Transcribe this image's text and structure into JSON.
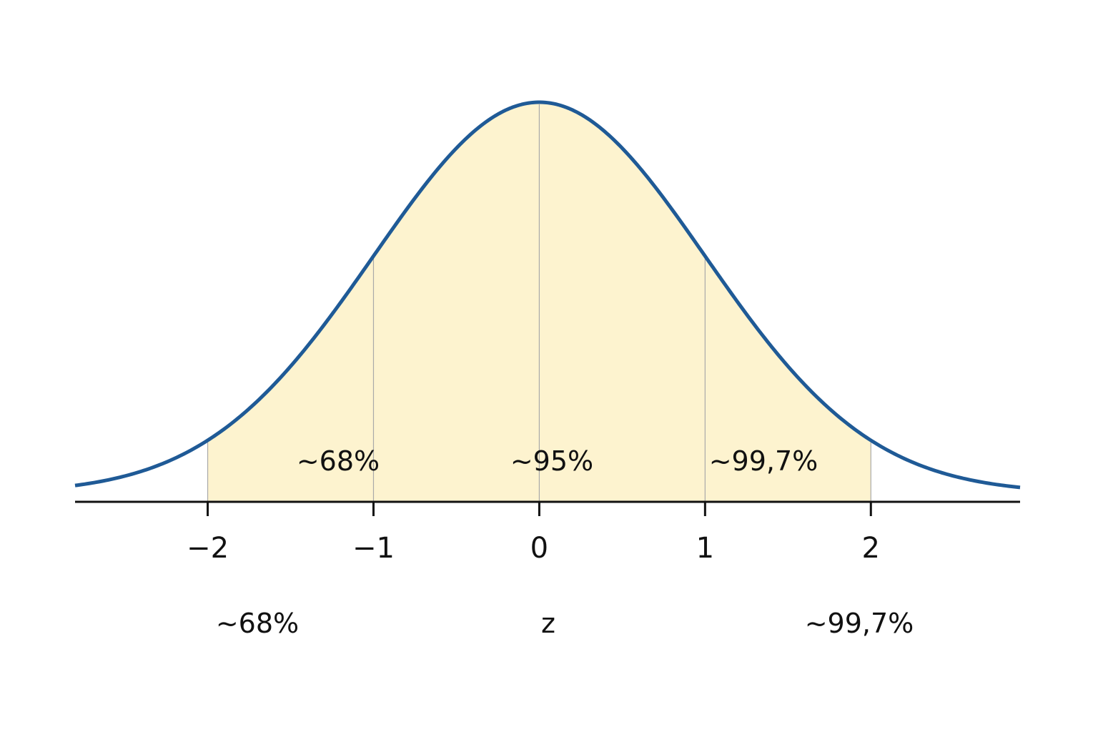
{
  "chart_data": {
    "type": "area",
    "x_tick_labels": [
      "−2",
      "−1",
      "0",
      "1",
      "2"
    ],
    "x_ticks": [
      -2,
      -1,
      0,
      1,
      2
    ],
    "xlim": [
      -2.8,
      2.9
    ],
    "ylim": [
      0,
      0.4
    ],
    "xlabel": "z",
    "shaded_range": [
      -2,
      2
    ],
    "gridlines_x": [
      -2,
      -1,
      0,
      1,
      2
    ],
    "curve": {
      "function": "standard normal density",
      "mean": 0,
      "sd": 1
    },
    "annotations": {
      "inside_left": "~68%",
      "inside_center": "~95%",
      "inside_right": "~99,7%",
      "below_left": "~68%",
      "below_right": "~99,7%"
    },
    "colors": {
      "curve": "#1f5a96",
      "fill": "#fdf3cf",
      "axis": "#111111",
      "gridline": "#a9a9a9"
    }
  }
}
